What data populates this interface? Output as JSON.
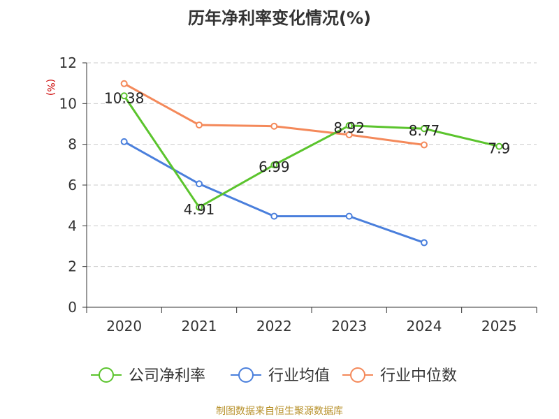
{
  "chart_data": {
    "type": "line",
    "title": "历年净利率变化情况(%)",
    "ylabel": "(%)",
    "xlabel": "",
    "ylim": [
      0,
      12
    ],
    "yticks": [
      0,
      2,
      4,
      6,
      8,
      10,
      12
    ],
    "categories": [
      "2020",
      "2021",
      "2022",
      "2023",
      "2024",
      "2025"
    ],
    "grid": true,
    "legend": "bottom",
    "series": [
      {
        "name": "公司净利率",
        "color": "#5bc42d",
        "values": [
          10.38,
          4.91,
          6.99,
          8.92,
          8.77,
          7.9
        ],
        "labels": [
          "10.38",
          "4.91",
          "6.99",
          "8.92",
          "8.77",
          "7.9"
        ]
      },
      {
        "name": "行业均值",
        "color": "#4a7fdc",
        "values": [
          8.13,
          6.06,
          4.47,
          4.47,
          3.17,
          null
        ]
      },
      {
        "name": "行业中位数",
        "color": "#f4895a",
        "values": [
          10.98,
          8.95,
          8.89,
          8.47,
          7.97,
          null
        ]
      }
    ]
  },
  "footer": {
    "source": "制图数据来自恒生聚源数据库"
  }
}
